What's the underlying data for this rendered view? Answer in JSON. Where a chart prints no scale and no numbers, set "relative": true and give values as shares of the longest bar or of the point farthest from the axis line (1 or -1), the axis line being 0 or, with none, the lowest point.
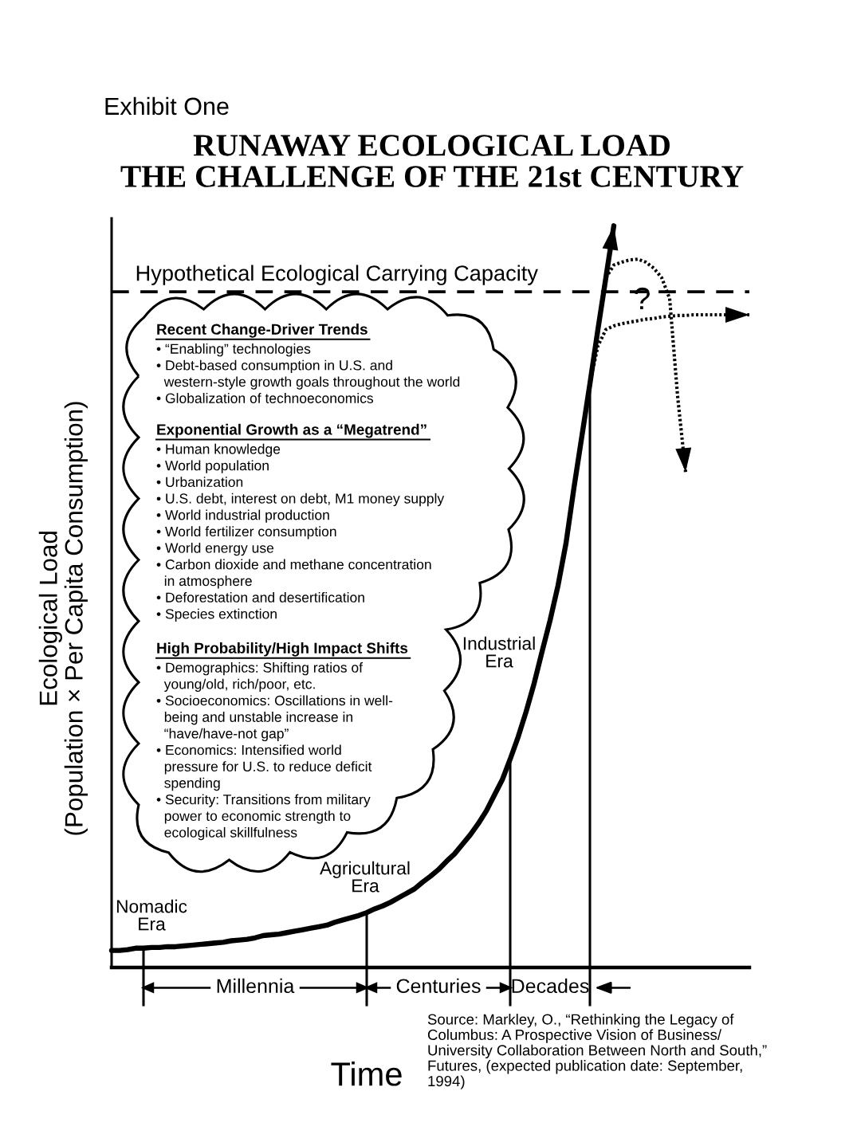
{
  "chart_data": {
    "type": "line",
    "title": "RUNAWAY ECOLOGICAL LOAD\nTHE CHALLENGE OF THE 21st CENTURY",
    "subtitle": "Exhibit One",
    "xlabel": "Time",
    "ylabel": "Ecological Load\n(Population × Per Capita Consumption)",
    "relative": true,
    "categories": [
      null,
      null,
      null,
      null,
      null,
      null,
      null,
      null,
      null,
      null,
      null,
      null,
      null,
      null,
      null,
      null,
      null,
      null,
      null,
      null,
      null,
      null,
      null,
      null,
      null,
      null,
      null,
      null,
      null,
      null,
      null,
      null,
      null,
      null,
      null,
      null,
      null,
      null,
      null,
      null,
      null,
      null,
      null,
      null,
      null,
      null,
      null,
      null,
      null,
      null,
      null,
      null,
      null,
      null,
      null,
      null,
      null,
      null,
      null,
      null,
      null,
      null,
      null,
      null,
      null,
      null,
      null,
      null,
      null,
      null,
      null,
      null,
      null,
      null,
      null,
      null,
      null,
      null,
      null,
      null,
      null
    ],
    "series": [
      {
        "color": "#000000",
        "line_style": "solid",
        "values": [
          0.023,
          0.023,
          0.024,
          0.026,
          0.026,
          0.027,
          0.027,
          0.028,
          0.028,
          0.029,
          0.03,
          0.031,
          0.032,
          0.033,
          0.034,
          0.036,
          0.037,
          0.038,
          0.04,
          0.043,
          0.044,
          0.045,
          0.047,
          0.049,
          0.051,
          0.053,
          0.055,
          0.057,
          0.061,
          0.064,
          0.067,
          0.07,
          0.074,
          0.079,
          0.083,
          0.088,
          0.094,
          0.1,
          0.106,
          0.115,
          0.123,
          0.132,
          0.143,
          0.153,
          0.166,
          0.179,
          0.194,
          0.211,
          0.232,
          0.253,
          0.281,
          0.311,
          0.345,
          0.383,
          0.426,
          0.468,
          0.515,
          0.572,
          0.647,
          0.717,
          0.787,
          0.86,
          0.93,
          1.0,
          null,
          null,
          null,
          null,
          null,
          null,
          null,
          null,
          null,
          null,
          null,
          null,
          null,
          null,
          null,
          null,
          null
        ]
      },
      {
        "color": "#000000",
        "line_style": "dotted",
        "values": [
          null,
          null,
          null,
          null,
          null,
          null,
          null,
          null,
          null,
          null,
          null,
          null,
          null,
          null,
          null,
          null,
          null,
          null,
          null,
          null,
          null,
          null,
          null,
          null,
          null,
          null,
          null,
          null,
          null,
          null,
          null,
          null,
          null,
          null,
          null,
          null,
          null,
          null,
          null,
          null,
          null,
          null,
          null,
          null,
          null,
          null,
          null,
          null,
          null,
          null,
          null,
          null,
          null,
          null,
          null,
          null,
          null,
          null,
          null,
          null,
          0.787,
          0.838,
          0.86,
          0.865,
          0.868,
          0.87,
          0.872,
          0.874,
          0.875,
          0.877,
          0.878,
          0.879,
          0.879,
          0.88,
          0.88,
          0.88,
          0.88,
          0.88,
          0.88,
          0.88,
          0.88
        ]
      },
      {
        "color": "#000000",
        "line_style": "dotted",
        "values": [
          null,
          null,
          null,
          null,
          null,
          null,
          null,
          null,
          null,
          null,
          null,
          null,
          null,
          null,
          null,
          null,
          null,
          null,
          null,
          null,
          null,
          null,
          null,
          null,
          null,
          null,
          null,
          null,
          null,
          null,
          null,
          null,
          null,
          null,
          null,
          null,
          null,
          null,
          null,
          null,
          null,
          null,
          null,
          null,
          null,
          null,
          null,
          null,
          null,
          null,
          null,
          null,
          null,
          null,
          null,
          null,
          null,
          null,
          null,
          null,
          null,
          null,
          0.93,
          0.947,
          0.951,
          0.954,
          0.955,
          0.951,
          0.943,
          0.93,
          0.902,
          0.77,
          0.668,
          null,
          null,
          null,
          null,
          null,
          null,
          null,
          null
        ]
      }
    ],
    "ref_lines": [
      {
        "axis": "y",
        "value": 0.911,
        "label": "Hypothetical Ecological Carrying Capacity",
        "line_style": "dashed"
      }
    ],
    "annotations": [
      "Recent Change-Driver Trends\n• “Enabling” technologies\n• Debt-based consumption in U.S. and\n  western-style growth goals throughout the world\n• Globalization of technoeconomics",
      "Exponential Growth as a “Megatrend”\n• Human knowledge\n• World population\n• Urbanization\n• U.S. debt, interest on debt, M1 money supply\n• World industrial production\n• World fertilizer consumption\n• World energy use\n• Carbon dioxide and methane concentration\n  in atmosphere\n• Deforestation and desertification\n• Species extinction",
      "High Probability/High Impact Shifts\n• Demographics: Shifting ratios of\n  young/old, rich/poor, etc.\n• Socioeconomics: Oscillations in well-\n  being and unstable increase in\n  “have/have-not gap”\n• Economics: Intensified world\n  pressure for U.S. to reduce deficit\n  spending\n• Security: Transitions from military\n  power to economic strength to\n  ecological skillfulness",
      "?",
      "Source: Markley, O., “Rethinking the Legacy of\nColumbus: A Prospective Vision of Business/\nUniversity Collaboration Between North and South,”\nFutures, (expected publication date: September,\n1994)",
      "Nomadic\nEra",
      "Agricultural\nEra",
      "Industrial\nEra",
      "Millennia",
      "Centuries",
      "Decades"
    ]
  }
}
